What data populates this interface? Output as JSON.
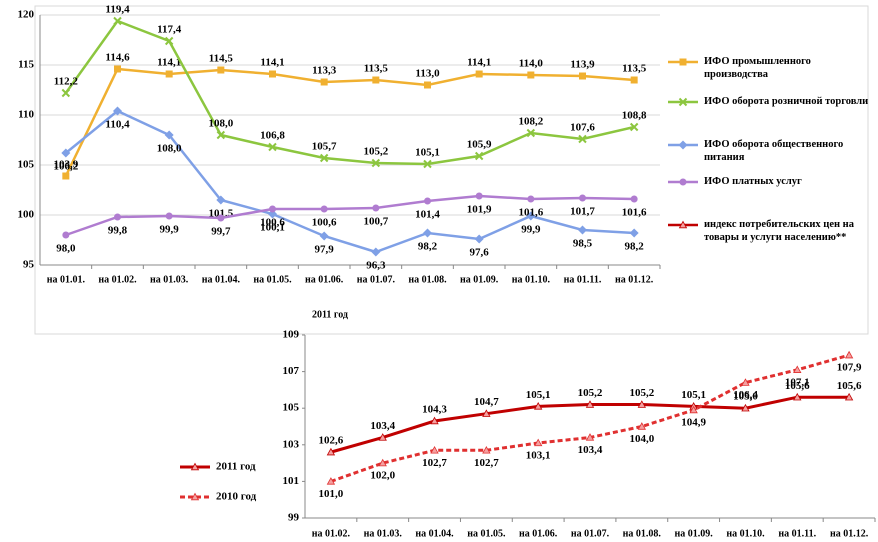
{
  "chart_data": [
    {
      "type": "line",
      "x_label": "2011 год",
      "categories": [
        "на 01.01.",
        "на 01.02.",
        "на 01.03.",
        "на 01.04.",
        "на 01.05.",
        "на 01.06.",
        "на 01.07.",
        "на 01.08.",
        "на 01.09.",
        "на 01.10.",
        "на 01.11.",
        "на 01.12."
      ],
      "ylim": [
        95,
        120
      ],
      "yticks": [
        95,
        100,
        105,
        110,
        115,
        120
      ],
      "grid": true,
      "legend": "right",
      "series": [
        {
          "name": "ИФО промышленного производства",
          "color": "#f0b030",
          "marker": "square",
          "values": [
            103.9,
            114.6,
            114.1,
            114.5,
            114.1,
            113.3,
            113.5,
            113.0,
            114.1,
            114.0,
            113.9,
            113.5
          ],
          "value_labels": [
            "103,9",
            "114,6",
            "114,1",
            "114,5",
            "114,1",
            "113,3",
            "113,5",
            "113,0",
            "114,1",
            "114,0",
            "113,9",
            "113,5"
          ]
        },
        {
          "name": "ИФО оборота розничной торговли",
          "color": "#8cc63f",
          "marker": "x",
          "values": [
            112.2,
            119.4,
            117.4,
            108.0,
            106.8,
            105.7,
            105.2,
            105.1,
            105.9,
            108.2,
            107.6,
            108.8
          ],
          "value_labels": [
            "112,2",
            "119,4",
            "117,4",
            "108,0",
            "106,8",
            "105,7",
            "105,2",
            "105,1",
            "105,9",
            "108,2",
            "107,6",
            "108,8"
          ]
        },
        {
          "name": "ИФО оборота общественного питания",
          "color": "#7fa0e6",
          "marker": "diamond",
          "values": [
            106.2,
            110.4,
            108.0,
            101.5,
            100.1,
            97.9,
            96.3,
            98.2,
            97.6,
            99.9,
            98.5,
            98.2
          ],
          "value_labels": [
            "106,2",
            "110,4",
            "108,0",
            "101,5",
            "100,1",
            "97,9",
            "96,3",
            "98,2",
            "97,6",
            "99,9",
            "98,5",
            "98,2"
          ]
        },
        {
          "name": "ИФО платных услуг",
          "color": "#b07cd0",
          "marker": "circle",
          "values": [
            98.0,
            99.8,
            99.9,
            99.7,
            100.6,
            100.6,
            100.7,
            101.4,
            101.9,
            101.6,
            101.7,
            101.6
          ],
          "value_labels": [
            "98,0",
            "99,8",
            "99,9",
            "99,7",
            "100,6",
            "100,6",
            "100,7",
            "101,4",
            "101,9",
            "101,6",
            "101,7",
            "101,6"
          ]
        },
        {
          "name": "индекс потребительских цен на товары и услуги населению**",
          "color": "#c00000",
          "marker": "triangle",
          "values": [
            null,
            null,
            null,
            null,
            null,
            null,
            null,
            null,
            null,
            null,
            null,
            null
          ]
        }
      ]
    },
    {
      "type": "line",
      "categories": [
        "на 01.02.",
        "на 01.03.",
        "на 01.04.",
        "на 01.05.",
        "на 01.06.",
        "на 01.07.",
        "на 01.08.",
        "на 01.09.",
        "на 01.10.",
        "на 01.11.",
        "на 01.12."
      ],
      "ylim": [
        99,
        109
      ],
      "yticks": [
        99,
        101,
        103,
        105,
        107,
        109
      ],
      "grid": false,
      "legend": "left",
      "series": [
        {
          "name": "2011 год",
          "color": "#c00000",
          "marker": "triangle",
          "dash": false,
          "values": [
            102.6,
            103.4,
            104.3,
            104.7,
            105.1,
            105.2,
            105.2,
            105.1,
            105.0,
            105.6,
            105.6
          ],
          "value_labels": [
            "102,6",
            "103,4",
            "104,3",
            "104,7",
            "105,1",
            "105,2",
            "105,2",
            "105,1",
            "105,0",
            "105,6",
            "105,6"
          ]
        },
        {
          "name": "2010 год",
          "color": "#e03030",
          "marker": "triangle",
          "dash": true,
          "values": [
            101.0,
            102.0,
            102.7,
            102.7,
            103.1,
            103.4,
            104.0,
            104.9,
            106.4,
            107.1,
            107.9
          ],
          "value_labels": [
            "101,0",
            "102,0",
            "102,7",
            "102,7",
            "103,1",
            "103,4",
            "104,0",
            "104,9",
            "106,4",
            "107,1",
            "107,9"
          ]
        }
      ]
    }
  ]
}
